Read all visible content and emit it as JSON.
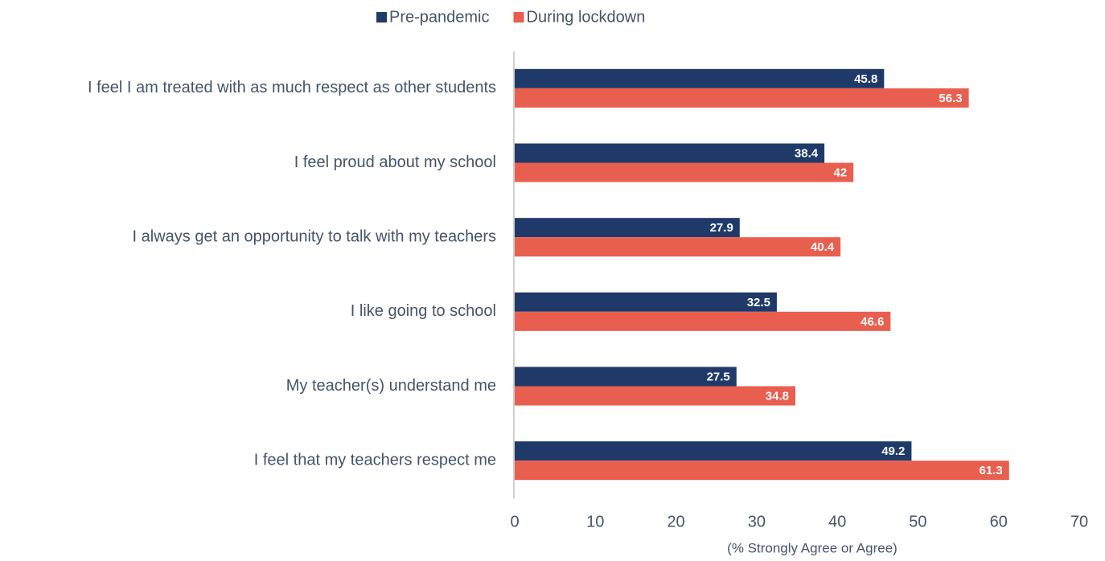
{
  "chart_data": {
    "type": "bar",
    "orientation": "horizontal",
    "x_label": "(% Strongly Agree or Agree)",
    "categories": [
      "I feel I am treated with as much respect as other students",
      "I feel proud about my school",
      "I always get an opportunity to talk with my teachers",
      "I like going to school",
      "My teacher(s) understand me",
      "I feel that my teachers respect me"
    ],
    "series": [
      {
        "name": "Pre-pandemic",
        "color": "#1f3a68",
        "values": [
          45.8,
          38.4,
          27.9,
          32.5,
          27.5,
          49.2
        ]
      },
      {
        "name": "During lockdown",
        "color": "#e95f4f",
        "values": [
          56.3,
          42,
          40.4,
          46.6,
          34.8,
          61.3
        ]
      }
    ],
    "xlim": [
      0,
      70
    ],
    "xticks": [
      0,
      10,
      20,
      30,
      40,
      50,
      60,
      70
    ],
    "legend": "top",
    "grid": false
  }
}
